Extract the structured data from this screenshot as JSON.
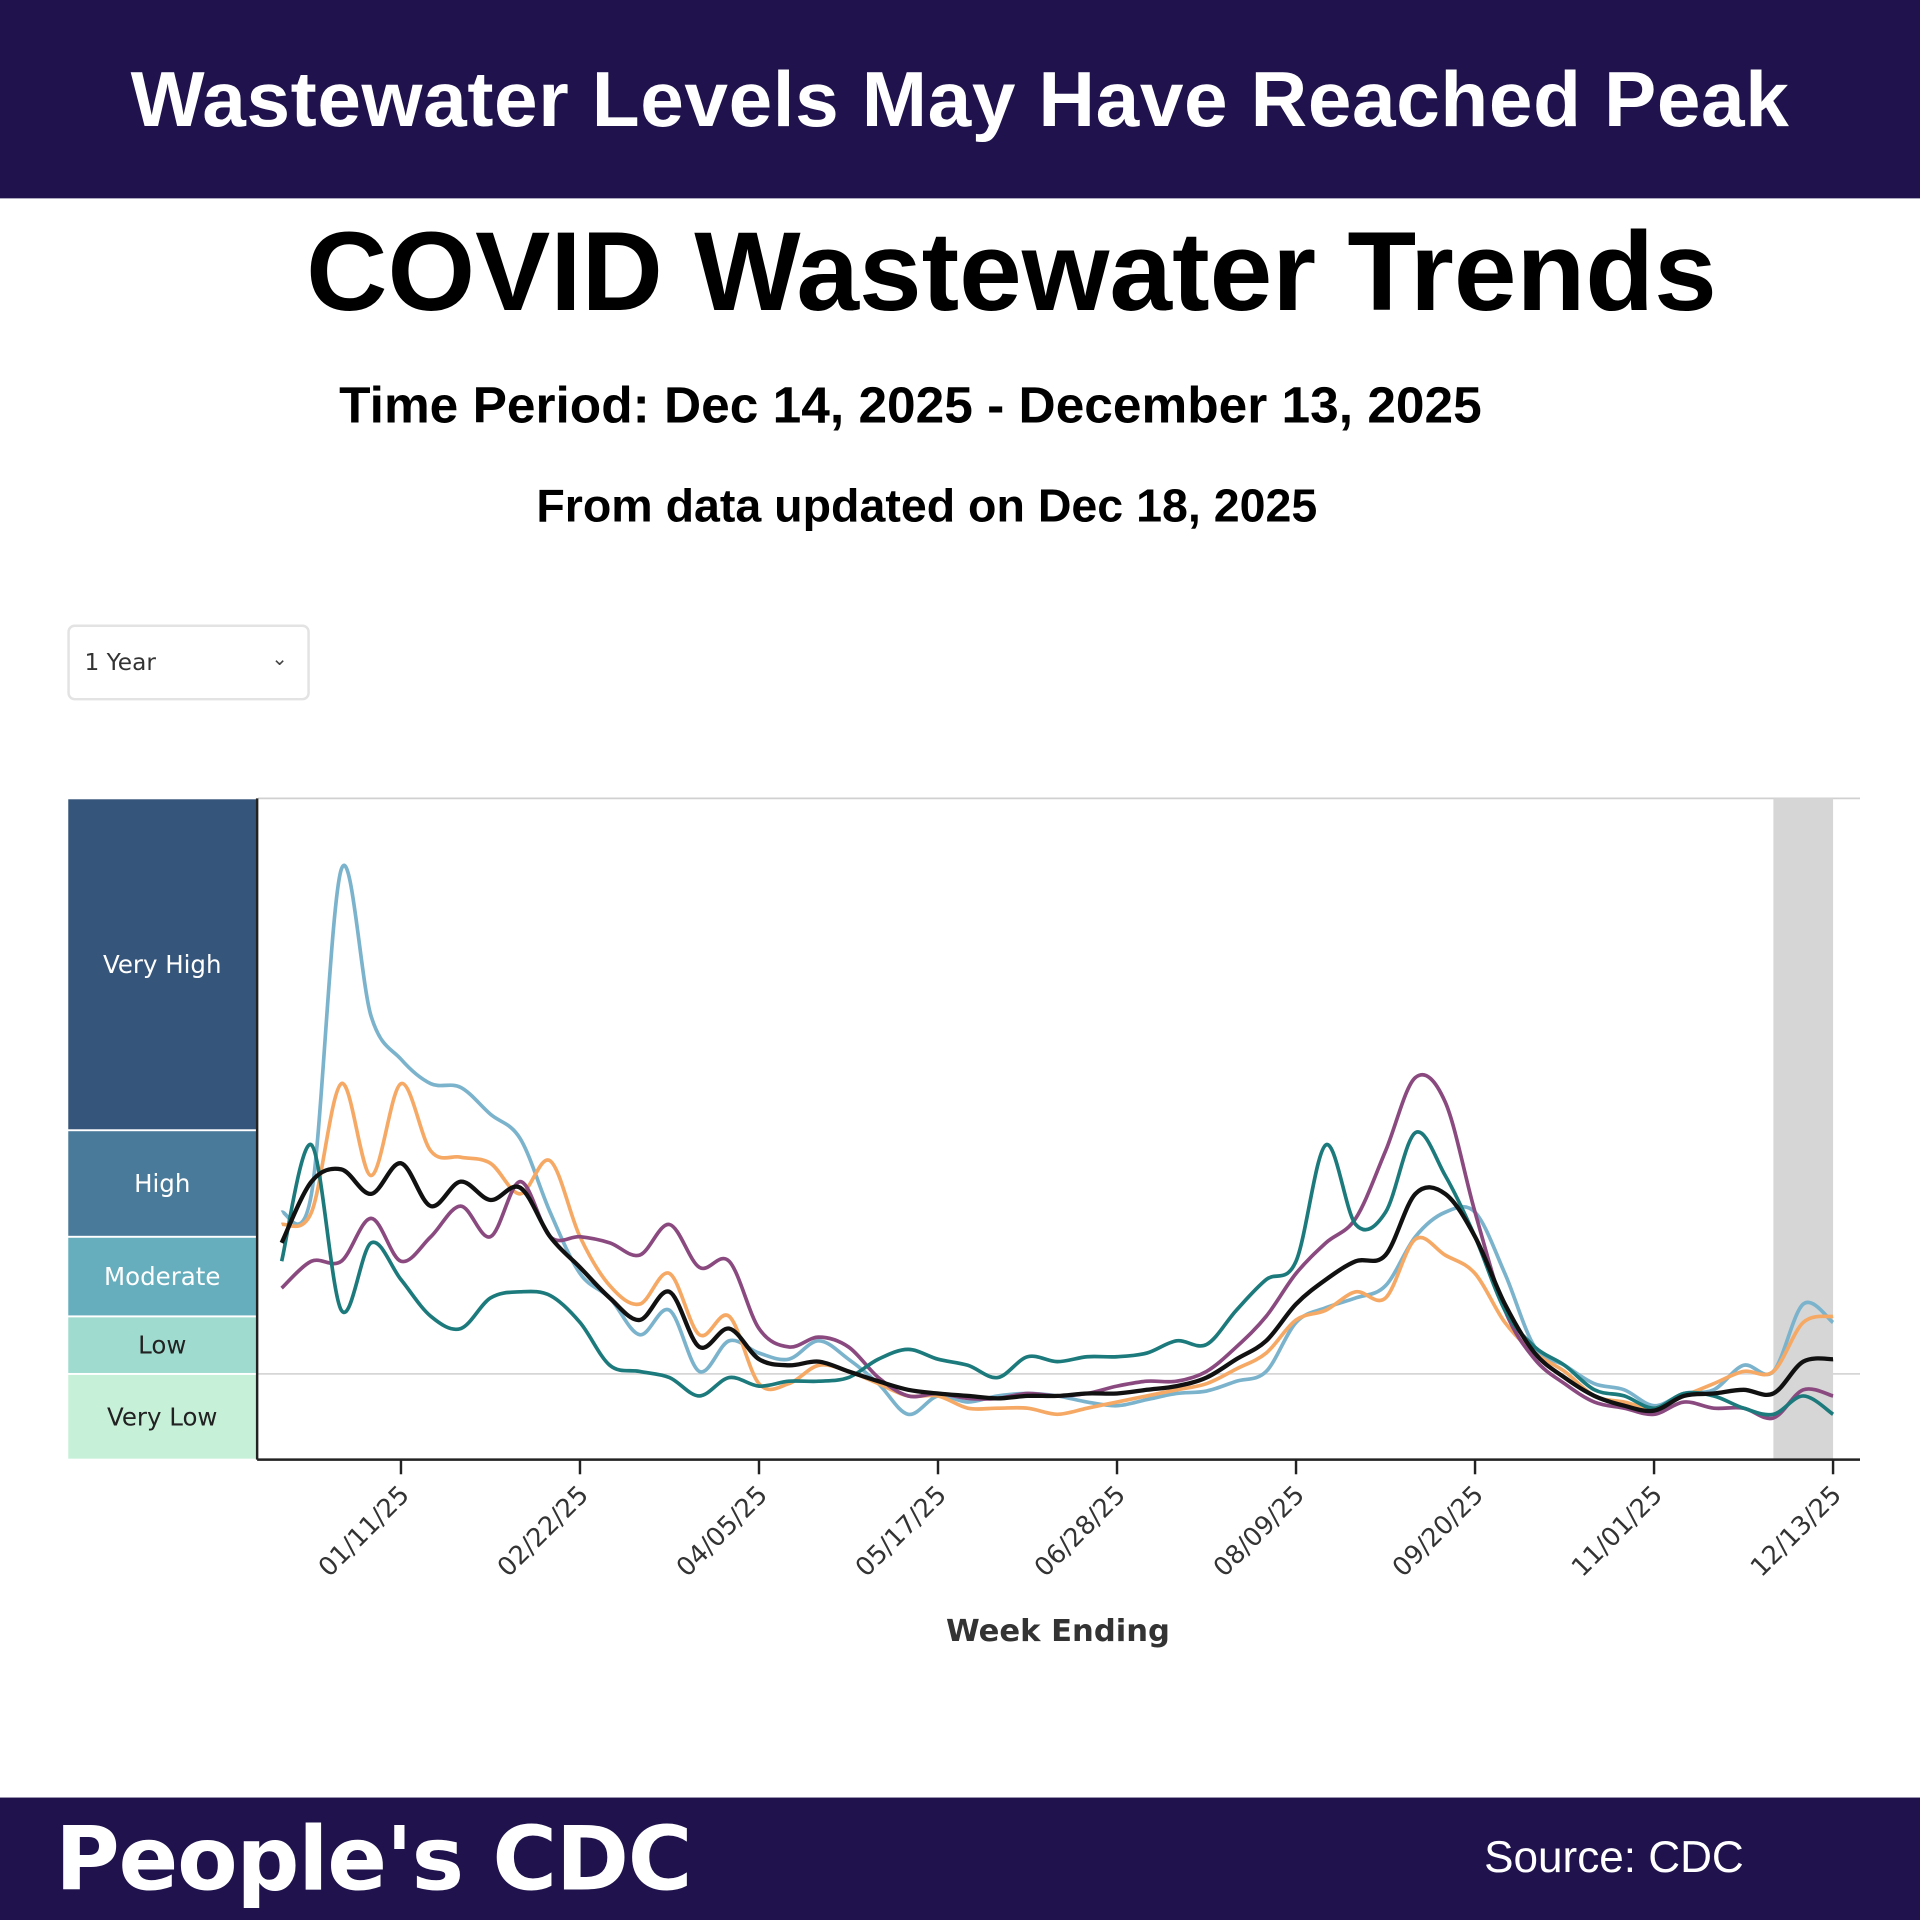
{
  "header": {
    "banner": "Wastewater Levels May Have Reached Peak"
  },
  "title": "COVID Wastewater Trends",
  "time_period": "Time Period: Dec 14, 2025 - December 13, 2025",
  "updated": "From data updated on Dec 18, 2025",
  "range_select": {
    "value": "1 Year",
    "icon": "chevron-down-icon"
  },
  "footer": {
    "brand": "People's CDC",
    "source": "Source: CDC"
  },
  "colors": {
    "banner": "#20134d",
    "very_high": "#36557a",
    "high": "#4a7a9a",
    "moderate": "#66aebd",
    "low": "#9fdbcf",
    "very_low": "#c6f0d8",
    "shaded_recent": "#d6d6d6"
  },
  "chart_data": {
    "type": "line",
    "xlabel": "Week Ending",
    "ylabel": "",
    "x_frequency": "weekly",
    "x_end": "12/13/25",
    "x_ticks": [
      "01/11/25",
      "02/22/25",
      "04/05/25",
      "05/17/25",
      "06/28/25",
      "08/09/25",
      "09/20/25",
      "11/01/25",
      "12/13/25"
    ],
    "ylim": [
      0,
      54
    ],
    "grid": false,
    "shaded_recent_weeks": 2,
    "levels": [
      {
        "label": "Very Low",
        "from": 0,
        "to": 7,
        "color": "#c6f0d8",
        "text_color": "#222"
      },
      {
        "label": "Low",
        "from": 7,
        "to": 11.7,
        "color": "#9fdbcf",
        "text_color": "#222"
      },
      {
        "label": "Moderate",
        "from": 11.7,
        "to": 18.2,
        "color": "#66aebd",
        "text_color": "#ffffff"
      },
      {
        "label": "High",
        "from": 18.2,
        "to": 26.9,
        "color": "#4a7a9a",
        "text_color": "#ffffff"
      },
      {
        "label": "Very High",
        "from": 26.9,
        "to": 54,
        "color": "#36557a",
        "text_color": "#ffffff"
      }
    ],
    "series": [
      {
        "color": "#7bb3cc",
        "values": [
          20.2,
          21.7,
          48.2,
          36.2,
          32.7,
          30.7,
          30.4,
          28.2,
          26.2,
          20.2,
          15.2,
          13.2,
          10.2,
          12.2,
          7.2,
          9.7,
          8.7,
          8.2,
          9.7,
          8.2,
          6.2,
          3.7,
          5.2,
          4.7,
          5.2,
          5.4,
          5.2,
          4.7,
          4.4,
          4.9,
          5.4,
          5.6,
          6.4,
          7.2,
          11.2,
          12.4,
          13.2,
          14.2,
          18.2,
          20.2,
          20.2,
          15.2,
          9.2,
          7.7,
          6.2,
          5.7,
          4.4,
          5.4,
          5.7,
          7.7,
          7.2,
          12.7,
          11.2
        ]
      },
      {
        "color": "#f5a965",
        "values": [
          19.2,
          20.2,
          30.7,
          23.2,
          30.7,
          25.2,
          24.7,
          24.2,
          21.7,
          24.4,
          18.2,
          14.2,
          12.7,
          15.2,
          10.2,
          11.7,
          6.2,
          6.2,
          7.7,
          7.2,
          6.2,
          5.2,
          5.2,
          4.2,
          4.2,
          4.2,
          3.7,
          4.2,
          4.7,
          5.2,
          5.7,
          6.2,
          7.4,
          8.7,
          11.4,
          12.2,
          13.7,
          13.2,
          18.0,
          16.7,
          15.2,
          11.2,
          8.7,
          7.2,
          5.2,
          4.7,
          4.2,
          5.2,
          6.2,
          7.2,
          7.2,
          11.2,
          11.7
        ]
      },
      {
        "color": "#8a4a80",
        "values": [
          14.0,
          16.2,
          16.2,
          19.7,
          16.2,
          18.2,
          20.7,
          18.2,
          22.7,
          18.2,
          18.2,
          17.7,
          16.7,
          19.2,
          15.7,
          16.2,
          10.7,
          9.2,
          10.0,
          9.2,
          6.7,
          5.2,
          5.4,
          5.0,
          5.0,
          5.4,
          5.2,
          5.4,
          6.0,
          6.4,
          6.4,
          7.2,
          9.2,
          11.7,
          15.2,
          17.7,
          19.7,
          25.2,
          31.2,
          29.2,
          20.2,
          12.2,
          8.2,
          6.2,
          4.7,
          4.2,
          3.7,
          4.7,
          4.2,
          4.2,
          3.4,
          5.7,
          5.2
        ]
      },
      {
        "color": "#1c7a7c",
        "values": [
          16.2,
          25.7,
          12.2,
          17.7,
          14.7,
          11.7,
          10.7,
          13.2,
          13.7,
          13.4,
          11.2,
          7.7,
          7.2,
          6.7,
          5.2,
          6.7,
          6.0,
          6.4,
          6.4,
          6.7,
          8.2,
          9.0,
          8.2,
          7.7,
          6.7,
          8.4,
          8.0,
          8.4,
          8.4,
          8.7,
          9.7,
          9.4,
          12.2,
          14.7,
          16.2,
          25.7,
          19.2,
          20.2,
          26.7,
          23.2,
          18.2,
          12.2,
          9.2,
          7.7,
          5.7,
          5.2,
          4.2,
          5.4,
          5.2,
          4.2,
          3.7,
          5.2,
          3.7
        ]
      },
      {
        "color": "#111111",
        "values": [
          17.7,
          22.7,
          23.7,
          21.7,
          24.2,
          20.7,
          22.7,
          21.2,
          22.2,
          18.2,
          15.7,
          13.2,
          11.4,
          13.7,
          9.2,
          10.7,
          8.2,
          7.7,
          8.0,
          7.2,
          6.4,
          5.7,
          5.4,
          5.2,
          5.0,
          5.2,
          5.2,
          5.4,
          5.4,
          5.7,
          6.0,
          6.7,
          8.2,
          9.7,
          12.7,
          14.7,
          16.2,
          16.7,
          21.7,
          21.7,
          18.2,
          12.7,
          8.7,
          6.7,
          5.2,
          4.4,
          4.0,
          5.2,
          5.4,
          5.7,
          5.4,
          8.0,
          8.2
        ]
      }
    ]
  }
}
